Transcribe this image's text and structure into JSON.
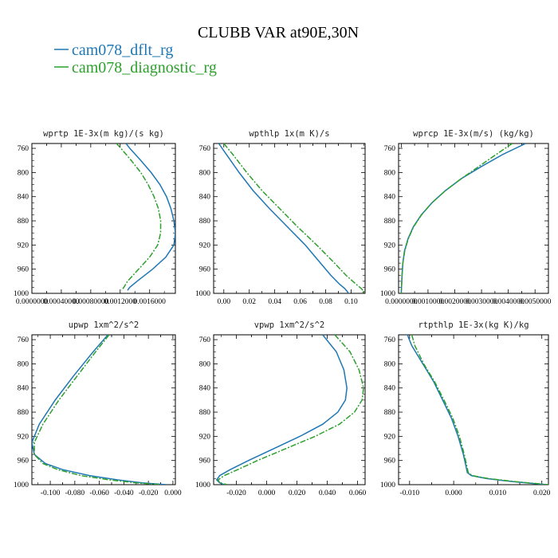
{
  "figure": {
    "title": "CLUBB VAR at90E,30N",
    "legend": [
      {
        "label": "cam078_dflt_rg",
        "color": "#1f77b4",
        "dash": "solid"
      },
      {
        "label": "cam078_diagnostic_rg",
        "color": "#2ca02c",
        "dash": "dashdot"
      }
    ]
  },
  "chart_data": [
    {
      "type": "line",
      "title": "wprtp  1E-3x(m kg)/(s kg)",
      "xlim": [
        0.0,
        0.00195
      ],
      "ylim": [
        1000,
        752
      ],
      "y_inverted": true,
      "xticks": [
        0.0,
        0.0004,
        0.0008,
        0.0012,
        0.0016
      ],
      "xtick_labels": [
        "0.0000000",
        "0.00040000",
        "0.00080000",
        "0.0012000",
        "0.0016000"
      ],
      "yticks": [
        760,
        800,
        840,
        880,
        920,
        960,
        1000
      ],
      "series": [
        {
          "name": "cam078_dflt_rg",
          "y": [
            752,
            760,
            780,
            800,
            820,
            840,
            860,
            880,
            900,
            920,
            940,
            960,
            980,
            990,
            995
          ],
          "x": [
            0.00128,
            0.00133,
            0.00148,
            0.00162,
            0.00174,
            0.00183,
            0.00189,
            0.00193,
            0.00195,
            0.00193,
            0.00182,
            0.00164,
            0.00143,
            0.00133,
            0.0013
          ]
        },
        {
          "name": "cam078_diagnostic_rg",
          "y": [
            752,
            760,
            780,
            800,
            820,
            840,
            860,
            880,
            900,
            920,
            940,
            960,
            980,
            990,
            995
          ],
          "x": [
            0.00115,
            0.00121,
            0.00135,
            0.00148,
            0.00158,
            0.00166,
            0.00172,
            0.00175,
            0.00175,
            0.00171,
            0.0016,
            0.00145,
            0.0013,
            0.00125,
            0.00122
          ]
        }
      ]
    },
    {
      "type": "line",
      "title": "wpthlp  1x(m K)/s",
      "xlim": [
        -0.008,
        0.111
      ],
      "ylim": [
        1000,
        752
      ],
      "y_inverted": true,
      "xticks": [
        0.0,
        0.02,
        0.04,
        0.06,
        0.08,
        0.1
      ],
      "xtick_labels": [
        "0.00",
        "0.02",
        "0.04",
        "0.06",
        "0.08",
        "0.10"
      ],
      "yticks": [
        760,
        800,
        840,
        880,
        920,
        960,
        1000
      ],
      "series": [
        {
          "name": "cam078_dflt_rg",
          "y": [
            752,
            770,
            800,
            830,
            860,
            890,
            920,
            950,
            970,
            985,
            992,
            997,
            1000
          ],
          "x": [
            -0.004,
            0.002,
            0.012,
            0.023,
            0.036,
            0.05,
            0.064,
            0.076,
            0.084,
            0.091,
            0.095,
            0.097,
            0.098
          ]
        },
        {
          "name": "cam078_diagnostic_rg",
          "y": [
            752,
            770,
            800,
            830,
            860,
            890,
            920,
            950,
            970,
            985,
            992,
            997,
            1000
          ],
          "x": [
            0.0,
            0.007,
            0.018,
            0.03,
            0.044,
            0.058,
            0.073,
            0.087,
            0.096,
            0.104,
            0.108,
            0.11,
            0.108
          ]
        }
      ]
    },
    {
      "type": "line",
      "title": "wprcp  1E-3x(m/s) (kg/kg)",
      "xlim": [
        -0.0001,
        0.0055
      ],
      "ylim": [
        1000,
        752
      ],
      "y_inverted": true,
      "xticks": [
        0.0,
        0.001,
        0.002,
        0.003,
        0.004,
        0.005
      ],
      "xtick_labels": [
        "0.0000000",
        "0.0010000",
        "0.0020000",
        "0.0030000",
        "0.0040000",
        "0.0050000"
      ],
      "yticks": [
        760,
        800,
        840,
        880,
        920,
        960,
        1000
      ],
      "series": [
        {
          "name": "cam078_dflt_rg",
          "y": [
            752,
            770,
            790,
            810,
            830,
            850,
            870,
            890,
            910,
            930,
            950,
            970,
            990,
            1000
          ],
          "x": [
            0.00465,
            0.0038,
            0.003,
            0.00225,
            0.00165,
            0.00115,
            0.00075,
            0.00045,
            0.00025,
            0.00012,
            6e-05,
            3e-05,
            1e-05,
            0.0
          ]
        },
        {
          "name": "cam078_diagnostic_rg",
          "y": [
            752,
            770,
            790,
            810,
            830,
            850,
            870,
            890,
            910,
            930,
            950,
            970,
            990,
            1000
          ],
          "x": [
            0.00415,
            0.00355,
            0.0029,
            0.00225,
            0.00165,
            0.00115,
            0.00076,
            0.00046,
            0.00026,
            0.00013,
            6e-05,
            3e-05,
            1e-05,
            0.0
          ]
        }
      ]
    },
    {
      "type": "line",
      "title": "upwp  1xm^2/s^2",
      "xlim": [
        -0.115,
        0.002
      ],
      "ylim": [
        1000,
        752
      ],
      "y_inverted": true,
      "xticks": [
        -0.1,
        -0.08,
        -0.06,
        -0.04,
        -0.02,
        0.0
      ],
      "xtick_labels": [
        "-0.100",
        "-0.080",
        "-0.060",
        "-0.040",
        "-0.020",
        "0.000"
      ],
      "yticks": [
        760,
        800,
        840,
        880,
        920,
        960,
        1000
      ],
      "series": [
        {
          "name": "cam078_dflt_rg",
          "y": [
            752,
            780,
            820,
            860,
            900,
            930,
            950,
            965,
            975,
            985,
            992,
            997,
            1000
          ],
          "x": [
            -0.053,
            -0.065,
            -0.081,
            -0.096,
            -0.109,
            -0.115,
            -0.113,
            -0.104,
            -0.09,
            -0.068,
            -0.045,
            -0.025,
            -0.005
          ]
        },
        {
          "name": "cam078_diagnostic_rg",
          "y": [
            752,
            780,
            820,
            860,
            900,
            930,
            950,
            965,
            975,
            985,
            992,
            997,
            1000
          ],
          "x": [
            -0.052,
            -0.063,
            -0.078,
            -0.093,
            -0.106,
            -0.113,
            -0.113,
            -0.106,
            -0.094,
            -0.075,
            -0.052,
            -0.03,
            -0.01
          ]
        }
      ]
    },
    {
      "type": "line",
      "title": "vpwp  1xm^2/s^2",
      "xlim": [
        -0.035,
        0.065
      ],
      "ylim": [
        1000,
        752
      ],
      "y_inverted": true,
      "xticks": [
        -0.02,
        0.0,
        0.02,
        0.04,
        0.06
      ],
      "xtick_labels": [
        "-0.020",
        "0.000",
        "0.020",
        "0.040",
        "0.060"
      ],
      "yticks": [
        760,
        800,
        840,
        880,
        920,
        960,
        1000
      ],
      "series": [
        {
          "name": "cam078_dflt_rg",
          "y": [
            752,
            780,
            810,
            840,
            860,
            880,
            900,
            920,
            940,
            960,
            975,
            985,
            992,
            997,
            1000
          ],
          "x": [
            0.037,
            0.046,
            0.051,
            0.053,
            0.052,
            0.047,
            0.037,
            0.022,
            0.005,
            -0.012,
            -0.024,
            -0.031,
            -0.033,
            -0.031,
            -0.028
          ]
        },
        {
          "name": "cam078_diagnostic_rg",
          "y": [
            752,
            780,
            810,
            840,
            860,
            880,
            900,
            920,
            940,
            960,
            975,
            985,
            992,
            997,
            1000
          ],
          "x": [
            0.045,
            0.055,
            0.061,
            0.064,
            0.063,
            0.058,
            0.048,
            0.032,
            0.013,
            -0.006,
            -0.019,
            -0.028,
            -0.032,
            -0.031,
            -0.026
          ]
        }
      ]
    },
    {
      "type": "line",
      "title": "rtpthlp  1E-3x(kg K)/kg",
      "xlim": [
        -0.0125,
        0.0215
      ],
      "ylim": [
        1000,
        752
      ],
      "y_inverted": true,
      "xticks": [
        -0.01,
        0.0,
        0.01,
        0.02
      ],
      "xtick_labels": [
        "-0.010",
        "0.000",
        "0.010",
        "0.020"
      ],
      "yticks": [
        760,
        800,
        840,
        880,
        920,
        960,
        1000
      ],
      "series": [
        {
          "name": "cam078_dflt_rg",
          "y": [
            752,
            770,
            800,
            830,
            860,
            890,
            920,
            950,
            970,
            980,
            985,
            990,
            995,
            1000
          ],
          "x": [
            -0.0105,
            -0.0095,
            -0.007,
            -0.0045,
            -0.0025,
            -0.0005,
            0.001,
            0.0022,
            0.0028,
            0.0031,
            0.004,
            0.0075,
            0.0135,
            0.021
          ]
        },
        {
          "name": "cam078_diagnostic_rg",
          "y": [
            752,
            770,
            800,
            830,
            860,
            890,
            920,
            950,
            970,
            980,
            985,
            990,
            995,
            1000
          ],
          "x": [
            -0.0095,
            -0.0088,
            -0.0068,
            -0.0043,
            -0.0022,
            -0.0002,
            0.0013,
            0.0024,
            0.003,
            0.0033,
            0.0042,
            0.008,
            0.014,
            0.0215
          ]
        }
      ]
    }
  ]
}
